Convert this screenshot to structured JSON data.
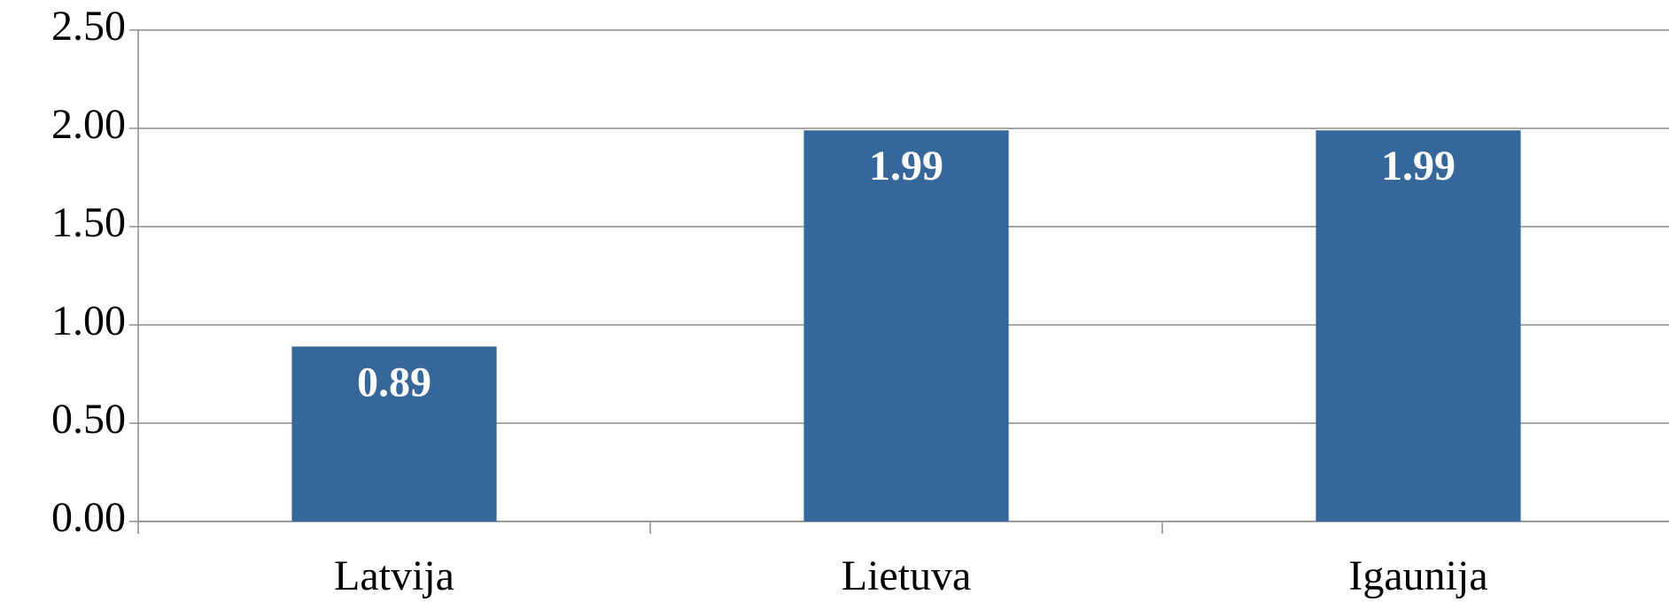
{
  "chart_data": {
    "type": "bar",
    "categories": [
      "Latvija",
      "Lietuva",
      "Igaunija"
    ],
    "values": [
      0.89,
      1.99,
      1.99
    ],
    "color": "#35679a",
    "ylim": [
      0,
      2.5
    ],
    "yticks": [
      {
        "value": 0,
        "label": "0.00"
      },
      {
        "value": 0.5,
        "label": "0.50"
      },
      {
        "value": 1,
        "label": "1.00"
      },
      {
        "value": 1.5,
        "label": "1.50"
      },
      {
        "value": 2,
        "label": "2.00"
      },
      {
        "value": 2.5,
        "label": "2.50"
      }
    ],
    "grid": true
  }
}
